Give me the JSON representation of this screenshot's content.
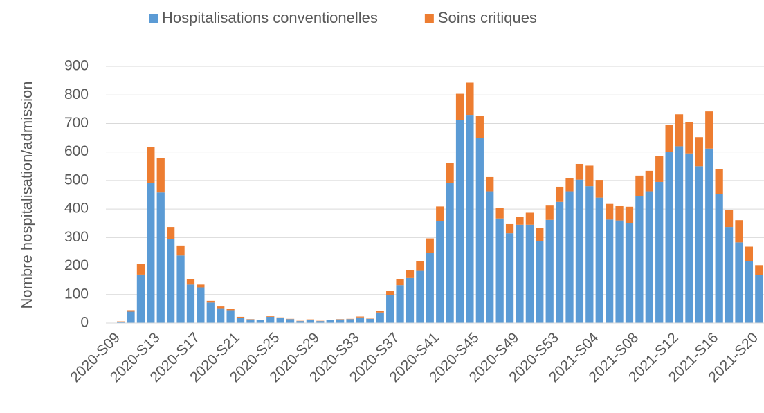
{
  "chart_data": {
    "type": "stacked_bar",
    "y_label": "Nombre hospitalisation/admission",
    "categories": [
      "2020-S09",
      null,
      null,
      null,
      "2020-S13",
      null,
      null,
      null,
      "2020-S17",
      null,
      null,
      null,
      "2020-S21",
      null,
      null,
      null,
      "2020-S25",
      null,
      null,
      null,
      "2020-S29",
      null,
      null,
      null,
      "2020-S33",
      null,
      null,
      null,
      "2020-S37",
      null,
      null,
      null,
      "2020-S41",
      null,
      null,
      null,
      "2020-S45",
      null,
      null,
      null,
      "2020-S49",
      null,
      null,
      null,
      "2020-S53",
      null,
      null,
      null,
      "2021-S04",
      null,
      null,
      null,
      "2021-S08",
      null,
      null,
      null,
      "2021-S12",
      null,
      null,
      null,
      "2021-S16",
      null,
      null,
      null,
      "2021-S20",
      null
    ],
    "series": [
      {
        "name": "Hospitalisations conventionelles",
        "color": "#5b9bd5",
        "values": [
          0,
          5,
          40,
          170,
          492,
          458,
          295,
          237,
          135,
          125,
          72,
          52,
          45,
          18,
          13,
          11,
          22,
          18,
          14,
          7,
          10,
          7,
          10,
          13,
          14,
          20,
          15,
          37,
          97,
          133,
          158,
          183,
          247,
          357,
          492,
          712,
          730,
          650,
          462,
          367,
          315,
          345,
          345,
          287,
          362,
          425,
          462,
          503,
          480,
          440,
          363,
          360,
          350,
          445,
          462,
          495,
          600,
          620,
          595,
          550,
          612,
          452,
          337,
          283,
          218,
          168
        ]
      },
      {
        "name": "Soins critiques",
        "color": "#ed7d31",
        "values": [
          0,
          1,
          5,
          38,
          125,
          120,
          42,
          35,
          18,
          10,
          6,
          6,
          5,
          4,
          1,
          1,
          2,
          2,
          1,
          1,
          3,
          1,
          1,
          1,
          1,
          3,
          1,
          5,
          15,
          22,
          27,
          35,
          50,
          52,
          70,
          92,
          113,
          77,
          50,
          37,
          32,
          28,
          42,
          47,
          50,
          53,
          45,
          55,
          72,
          62,
          55,
          50,
          58,
          72,
          72,
          92,
          95,
          112,
          110,
          102,
          130,
          88,
          60,
          78,
          50,
          35
        ]
      }
    ],
    "ylim": [
      0,
      900
    ],
    "yticks": [
      0,
      100,
      200,
      300,
      400,
      500,
      600,
      700,
      800,
      900
    ],
    "grid": true,
    "legend": "top"
  }
}
